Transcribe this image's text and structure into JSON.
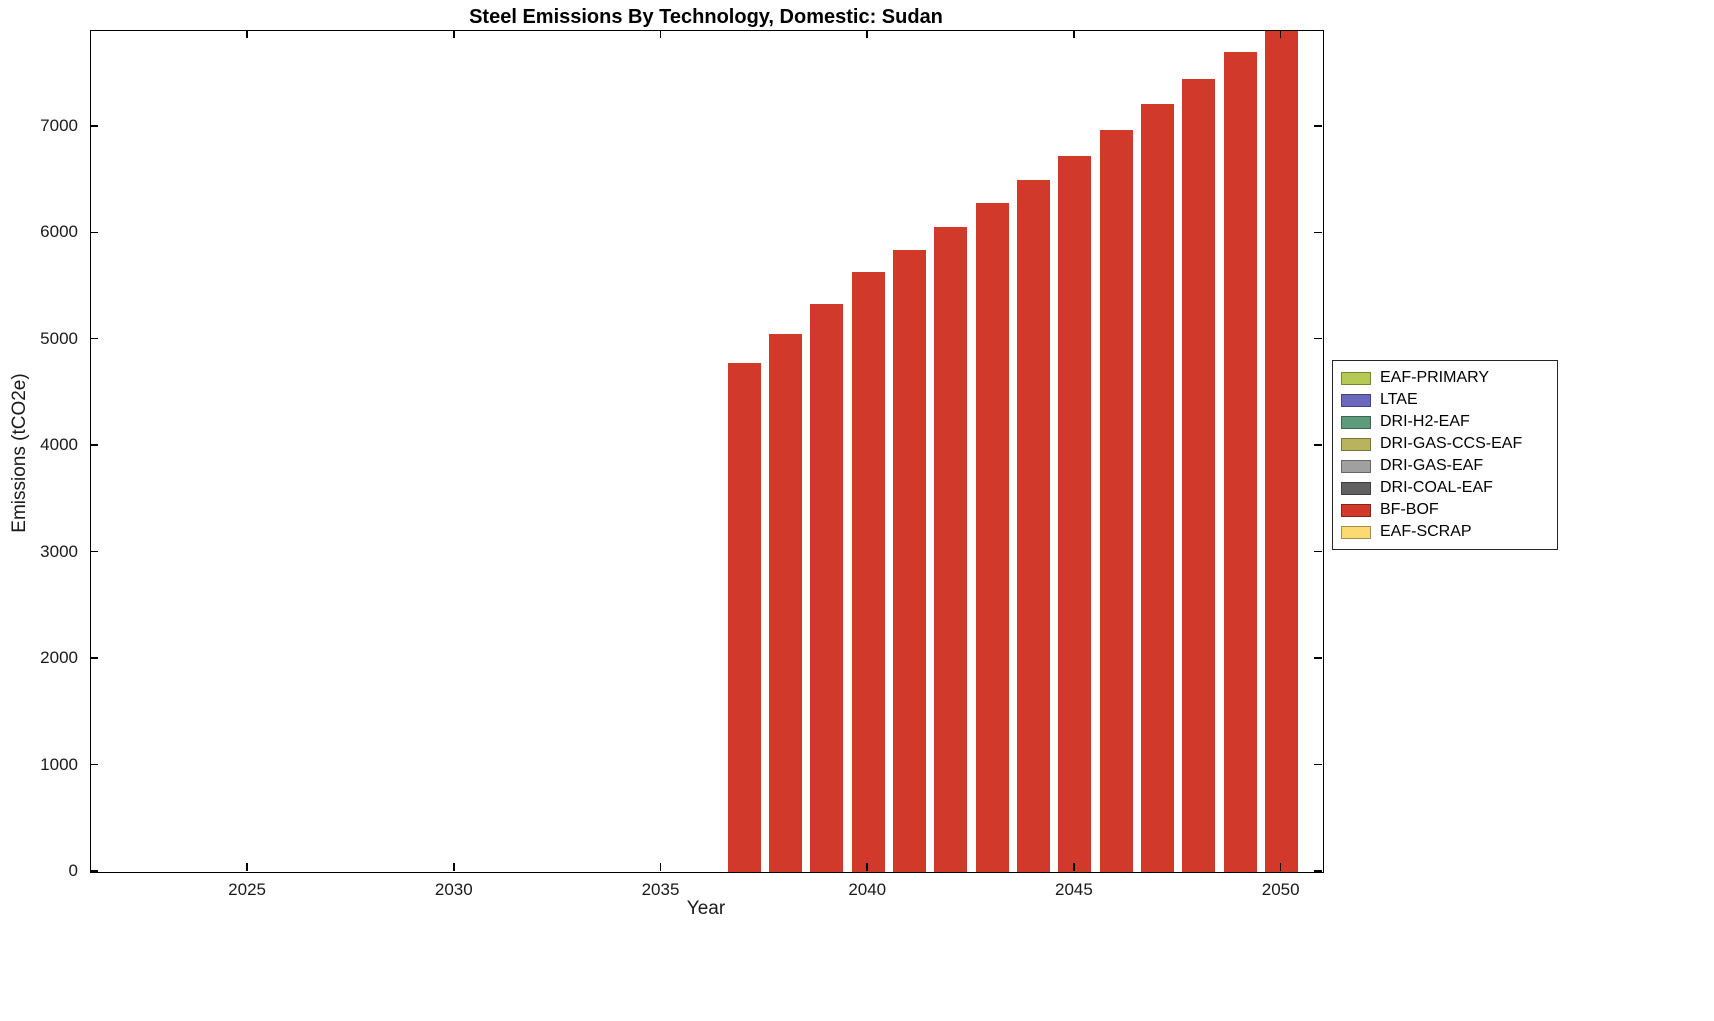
{
  "chart_data": {
    "type": "bar",
    "title": "Steel Emissions By Technology, Domestic: Sudan",
    "xlabel": "Year",
    "ylabel": "Emissions (tCO2e)",
    "xlim": [
      2021.2,
      2051
    ],
    "ylim": [
      0,
      7900
    ],
    "xticks": [
      2025,
      2030,
      2035,
      2040,
      2045,
      2050
    ],
    "yticks": [
      0,
      1000,
      2000,
      3000,
      4000,
      5000,
      6000,
      7000
    ],
    "grid": false,
    "legend_position": "right-outside",
    "bar_width_years": 0.8,
    "x": [
      2037,
      2038,
      2039,
      2040,
      2041,
      2042,
      2043,
      2044,
      2045,
      2046,
      2047,
      2048,
      2049,
      2050
    ],
    "series": [
      {
        "name": "BF-BOF",
        "color": "#d13a2a",
        "values": [
          4780,
          5050,
          5340,
          5640,
          5840,
          6060,
          6280,
          6500,
          6730,
          6970,
          7210,
          7450,
          7700,
          7950
        ]
      }
    ],
    "legend": [
      {
        "label": "EAF-PRIMARY",
        "color": "#b5c954"
      },
      {
        "label": "LTAE",
        "color": "#6b68bd"
      },
      {
        "label": "DRI-H2-EAF",
        "color": "#5d9b7c"
      },
      {
        "label": "DRI-GAS-CCS-EAF",
        "color": "#b9b35e"
      },
      {
        "label": "DRI-GAS-EAF",
        "color": "#a0a0a0"
      },
      {
        "label": "DRI-COAL-EAF",
        "color": "#606060"
      },
      {
        "label": "BF-BOF",
        "color": "#d13a2a"
      },
      {
        "label": "EAF-SCRAP",
        "color": "#fbda74"
      }
    ]
  }
}
